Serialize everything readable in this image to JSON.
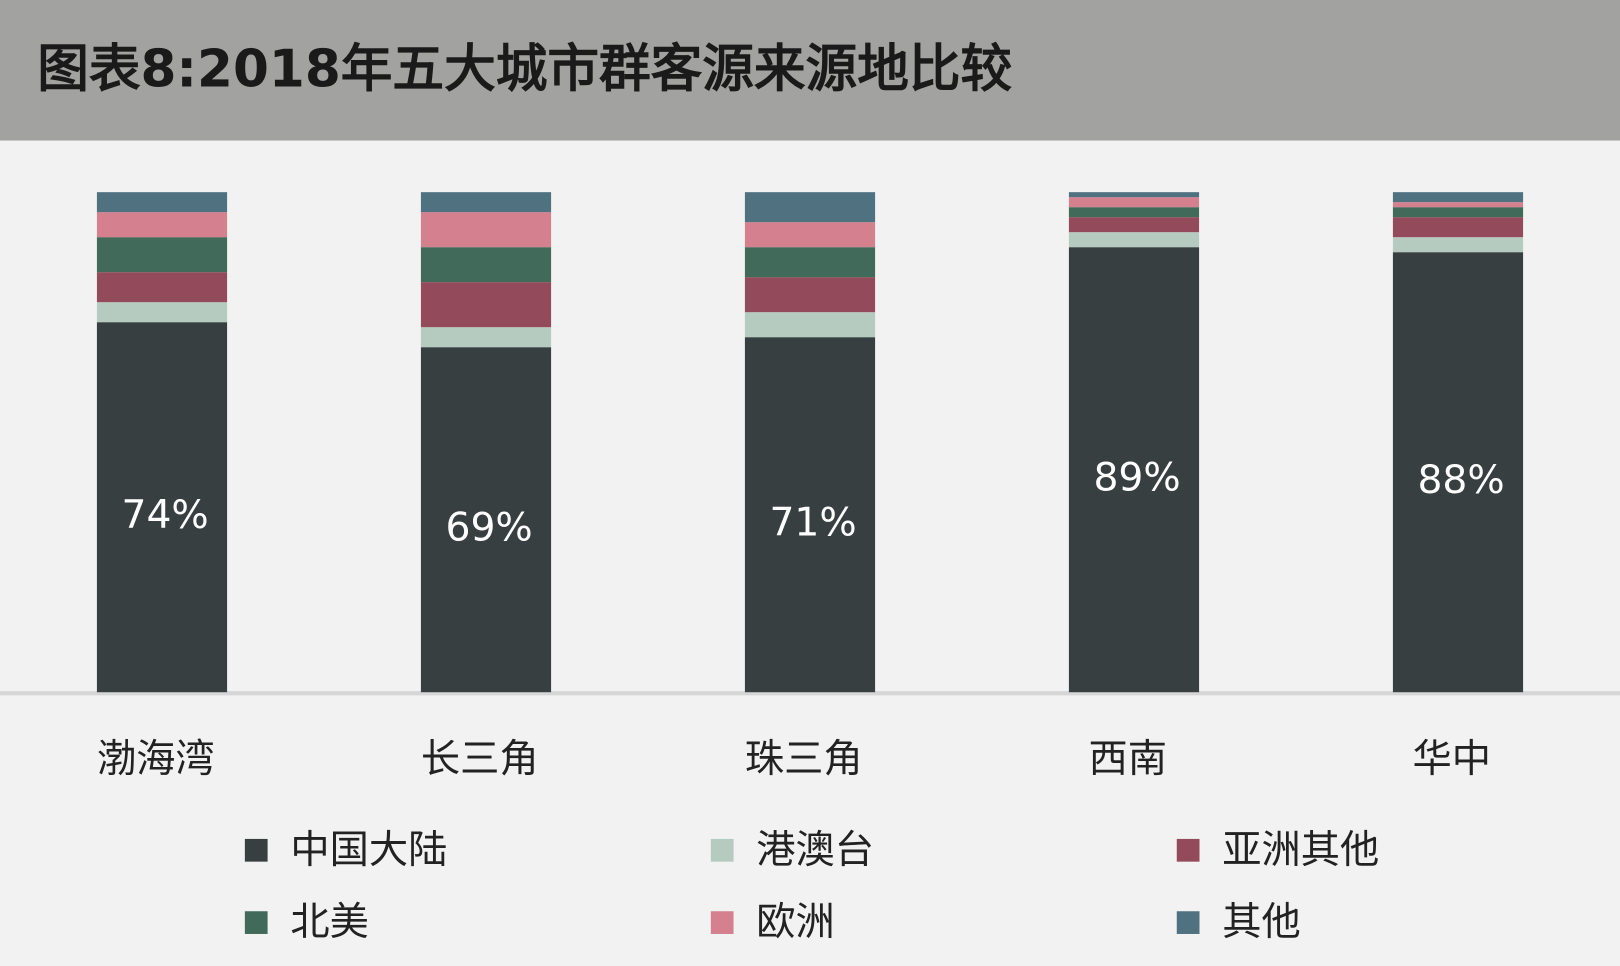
{
  "chart_data": {
    "type": "stacked_bar",
    "title": "图表8:2018年五大城市群客源来源地比较",
    "categories": [
      "渤海湾",
      "长三角",
      "珠三角",
      "西南",
      "华中"
    ],
    "ylim": [
      0,
      100
    ],
    "legend": "bottom",
    "series": [
      {
        "name": "中国大陆",
        "color": "#373f40",
        "values": [
          74,
          69,
          71,
          89,
          88
        ],
        "value_labels": [
          "74%",
          "69%",
          "71%",
          "89%",
          "88%"
        ]
      },
      {
        "name": "港澳台",
        "color": "#b5cbc0",
        "values": [
          4,
          4,
          5,
          3,
          3
        ]
      },
      {
        "name": "亚洲其他",
        "color": "#934a5a",
        "values": [
          6,
          9,
          7,
          3,
          4
        ]
      },
      {
        "name": "北美",
        "color": "#426a5a",
        "values": [
          7,
          7,
          6,
          2,
          2
        ]
      },
      {
        "name": "欧洲",
        "color": "#d4808f",
        "values": [
          5,
          7,
          5,
          2,
          1
        ]
      },
      {
        "name": "其他",
        "color": "#50717f",
        "values": [
          4,
          4,
          6,
          1,
          2
        ]
      }
    ]
  }
}
